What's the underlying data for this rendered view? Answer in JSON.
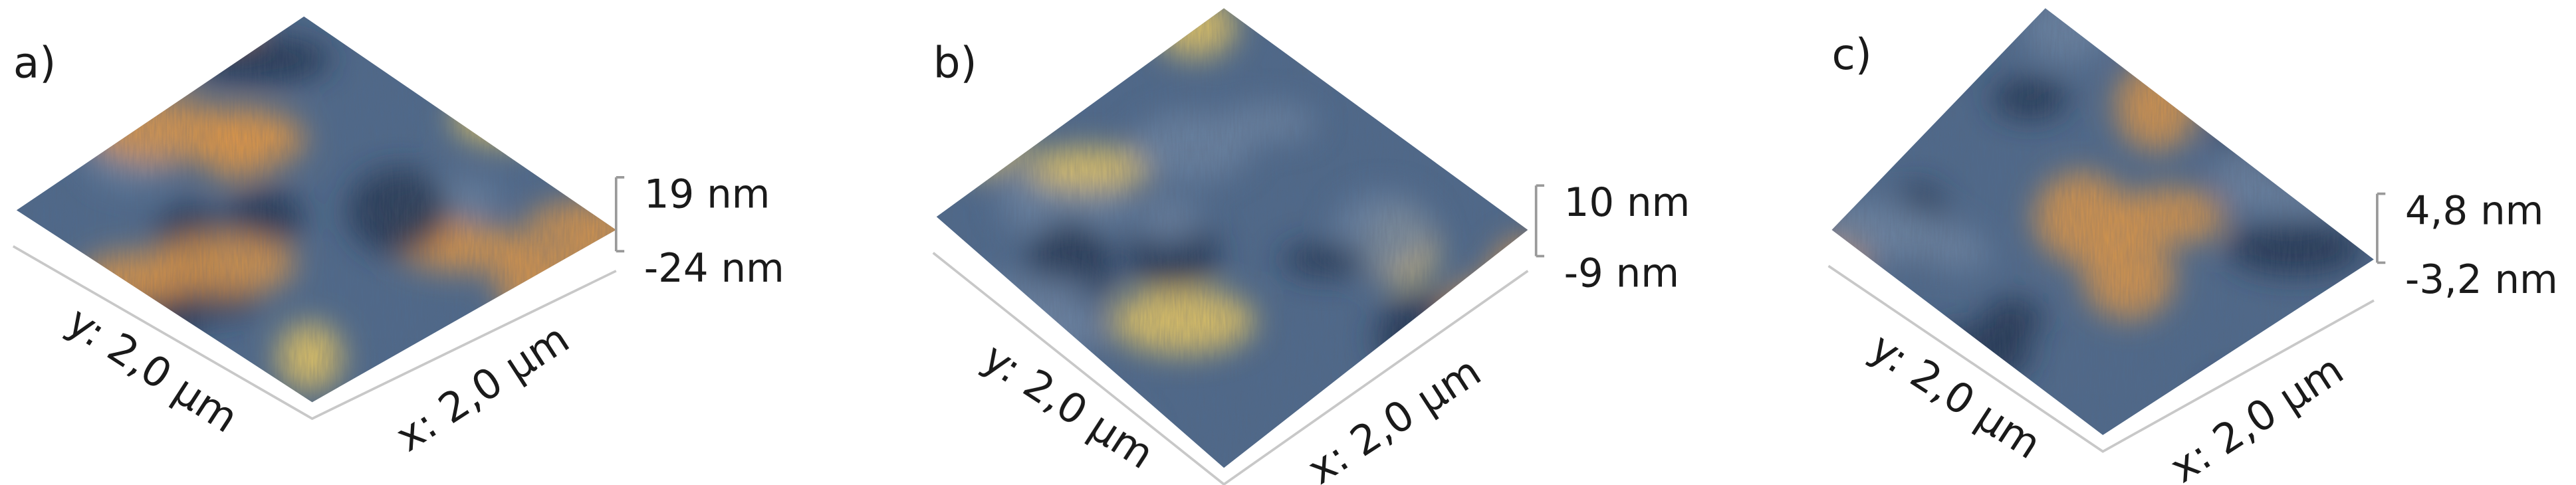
{
  "panels": [
    {
      "label": "a)",
      "z_max": "19 nm",
      "z_min": "-24 nm",
      "y_axis": "y: 2,0 µm",
      "x_axis": "x: 2,0 µm"
    },
    {
      "label": "b)",
      "z_max": "10 nm",
      "z_min": "-9 nm",
      "y_axis": "y: 2,0 µm",
      "x_axis": "x: 2,0 µm"
    },
    {
      "label": "c)",
      "z_max": "4,8 nm",
      "z_min": "-3,2 nm",
      "y_axis": "y: 2,0 µm",
      "x_axis": "x: 2,0 µm"
    }
  ]
}
